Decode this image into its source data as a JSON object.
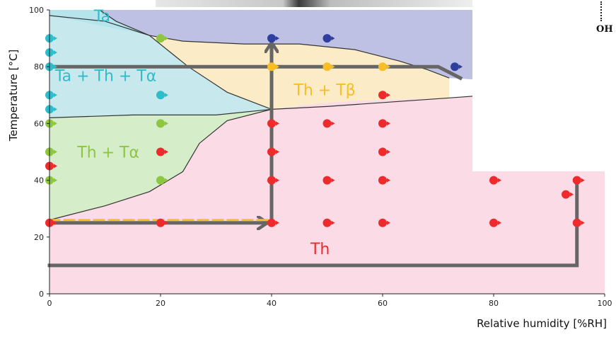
{
  "chart_data": {
    "type": "scatter",
    "title": "",
    "xlabel": "Relative humidity [%RH]",
    "ylabel": "Temperature [°C]",
    "xlim": [
      0,
      100
    ],
    "ylim": [
      0,
      100
    ],
    "x_ticks": [
      "0",
      "20",
      "40",
      "60",
      "80",
      "100"
    ],
    "y_ticks": [
      "0",
      "20",
      "40",
      "60",
      "80",
      "100"
    ],
    "grid": false,
    "colors": {
      "Ta": "#b5e4ec",
      "Ta+Th+Ta": "#c7e8ec",
      "Th+Ta": "#d5edc8",
      "Th+Tb": "#fcebc7",
      "Th": "#fadbe6",
      "top_right": "#bec1e3",
      "teal_point": "#2ebdcb",
      "green_point": "#8dc63f",
      "red_point": "#ee2a2d",
      "yellow_point": "#f9bd25",
      "blue_point": "#2e3f9e",
      "path_line": "#666666"
    },
    "regions": [
      {
        "label": "Ta",
        "color_key": "Ta",
        "label_x": 8,
        "label_y": 96,
        "label_color": "#2ebdcb",
        "polygon": [
          [
            0,
            100
          ],
          [
            9,
            100
          ],
          [
            12,
            96
          ],
          [
            18,
            91
          ],
          [
            0,
            98
          ]
        ]
      },
      {
        "label": "Ta + Th + Tα",
        "color_key": "Ta+Th+Ta",
        "label_x": 1,
        "label_y": 75,
        "label_color": "#2ebdcb",
        "polygon": [
          [
            0,
            98
          ],
          [
            18,
            91
          ],
          [
            25,
            80
          ],
          [
            32,
            71
          ],
          [
            40,
            65
          ],
          [
            30,
            63
          ],
          [
            15,
            63
          ],
          [
            0,
            62
          ]
        ]
      },
      {
        "label": "Th + Tα",
        "color_key": "Th+Ta",
        "label_x": 5,
        "label_y": 48,
        "label_color": "#8dc63f",
        "polygon": [
          [
            0,
            62
          ],
          [
            15,
            63
          ],
          [
            30,
            63
          ],
          [
            40,
            65
          ],
          [
            32,
            61
          ],
          [
            27,
            53
          ],
          [
            24,
            43
          ],
          [
            18,
            36
          ],
          [
            10,
            31
          ],
          [
            0,
            26
          ]
        ]
      },
      {
        "label": "Th + Tβ",
        "color_key": "Th+Tb",
        "label_x": 44,
        "label_y": 70,
        "label_color": "#f9bd25",
        "polygon": [
          [
            18,
            91
          ],
          [
            24,
            89
          ],
          [
            35,
            88
          ],
          [
            45,
            88
          ],
          [
            55,
            86
          ],
          [
            63,
            82
          ],
          [
            68,
            79
          ],
          [
            72,
            76
          ],
          [
            72,
            69
          ],
          [
            55,
            68
          ],
          [
            48,
            67
          ],
          [
            40,
            65
          ],
          [
            32,
            71
          ],
          [
            25,
            80
          ]
        ]
      },
      {
        "label": "Th",
        "color_key": "Th",
        "label_x": 47,
        "label_y": 14,
        "label_color": "#ee2a2d",
        "polygon": [
          [
            0,
            0
          ],
          [
            100,
            0
          ],
          [
            100,
            73
          ],
          [
            72,
            69
          ],
          [
            55,
            68
          ],
          [
            48,
            67
          ],
          [
            40,
            65
          ],
          [
            32,
            61
          ],
          [
            27,
            53
          ],
          [
            24,
            43
          ],
          [
            18,
            36
          ],
          [
            10,
            31
          ],
          [
            0,
            26
          ]
        ]
      },
      {
        "label": "",
        "color_key": "top_right",
        "label_x": 0,
        "label_y": 0,
        "label_color": "#000000",
        "polygon": [
          [
            9,
            100
          ],
          [
            100,
            100
          ],
          [
            100,
            73
          ],
          [
            72,
            76
          ],
          [
            68,
            79
          ],
          [
            63,
            82
          ],
          [
            55,
            86
          ],
          [
            45,
            88
          ],
          [
            35,
            88
          ],
          [
            24,
            89
          ],
          [
            18,
            91
          ],
          [
            12,
            96
          ]
        ]
      }
    ],
    "boundaries": [
      [
        [
          0,
          98
        ],
        [
          10,
          96
        ],
        [
          18,
          91
        ],
        [
          25,
          80
        ],
        [
          32,
          71
        ],
        [
          40,
          65
        ]
      ],
      [
        [
          18,
          91
        ],
        [
          24,
          89
        ],
        [
          35,
          88
        ],
        [
          45,
          88
        ],
        [
          55,
          86
        ],
        [
          63,
          82
        ],
        [
          68,
          79
        ],
        [
          72,
          76
        ]
      ],
      [
        [
          9,
          100
        ],
        [
          12,
          96
        ],
        [
          18,
          91
        ]
      ],
      [
        [
          0,
          62
        ],
        [
          15,
          63
        ],
        [
          30,
          63
        ],
        [
          40,
          65
        ],
        [
          50,
          66
        ],
        [
          72,
          69
        ],
        [
          100,
          73
        ]
      ],
      [
        [
          40,
          65
        ],
        [
          32,
          61
        ],
        [
          27,
          53
        ],
        [
          24,
          43
        ],
        [
          18,
          36
        ],
        [
          10,
          31
        ],
        [
          0,
          26
        ]
      ]
    ],
    "paths": [
      {
        "style": "solid",
        "points": [
          [
            0,
            25
          ],
          [
            39,
            25
          ]
        ],
        "arrow": true
      },
      {
        "style": "solid",
        "points": [
          [
            40,
            25
          ],
          [
            40,
            88
          ]
        ],
        "arrow": true
      },
      {
        "style": "solid",
        "points": [
          [
            0,
            80
          ],
          [
            70,
            80
          ],
          [
            74,
            76
          ]
        ],
        "arrow": false
      },
      {
        "style": "solid",
        "points": [
          [
            0,
            10
          ],
          [
            95,
            10
          ],
          [
            95,
            40
          ]
        ],
        "arrow": false
      },
      {
        "style": "dashed",
        "points": [
          [
            0,
            26
          ],
          [
            40,
            26
          ]
        ],
        "arrow": false
      }
    ],
    "points": [
      {
        "x": 0,
        "y": 90,
        "color": "teal_point"
      },
      {
        "x": 0,
        "y": 85,
        "color": "teal_point"
      },
      {
        "x": 0,
        "y": 80,
        "color": "teal_point"
      },
      {
        "x": 0,
        "y": 70,
        "color": "teal_point"
      },
      {
        "x": 0,
        "y": 65,
        "color": "teal_point"
      },
      {
        "x": 0,
        "y": 60,
        "color": "green_point"
      },
      {
        "x": 0,
        "y": 50,
        "color": "green_point"
      },
      {
        "x": 0,
        "y": 45,
        "color": "red_point"
      },
      {
        "x": 0,
        "y": 40,
        "color": "green_point"
      },
      {
        "x": 0,
        "y": 25,
        "color": "red_point"
      },
      {
        "x": 20,
        "y": 90,
        "color": "green_point"
      },
      {
        "x": 20,
        "y": 70,
        "color": "teal_point"
      },
      {
        "x": 20,
        "y": 60,
        "color": "green_point"
      },
      {
        "x": 20,
        "y": 50,
        "color": "red_point"
      },
      {
        "x": 20,
        "y": 40,
        "color": "green_point"
      },
      {
        "x": 20,
        "y": 25,
        "color": "red_point"
      },
      {
        "x": 40,
        "y": 90,
        "color": "blue_point"
      },
      {
        "x": 40,
        "y": 80,
        "color": "yellow_point"
      },
      {
        "x": 40,
        "y": 60,
        "color": "red_point"
      },
      {
        "x": 40,
        "y": 50,
        "color": "red_point"
      },
      {
        "x": 40,
        "y": 40,
        "color": "red_point"
      },
      {
        "x": 40,
        "y": 25,
        "color": "red_point"
      },
      {
        "x": 50,
        "y": 90,
        "color": "blue_point"
      },
      {
        "x": 50,
        "y": 80,
        "color": "yellow_point"
      },
      {
        "x": 50,
        "y": 60,
        "color": "red_point"
      },
      {
        "x": 50,
        "y": 40,
        "color": "red_point"
      },
      {
        "x": 50,
        "y": 25,
        "color": "red_point"
      },
      {
        "x": 60,
        "y": 80,
        "color": "yellow_point"
      },
      {
        "x": 60,
        "y": 70,
        "color": "red_point"
      },
      {
        "x": 60,
        "y": 60,
        "color": "red_point"
      },
      {
        "x": 60,
        "y": 50,
        "color": "red_point"
      },
      {
        "x": 60,
        "y": 40,
        "color": "red_point"
      },
      {
        "x": 60,
        "y": 25,
        "color": "red_point"
      },
      {
        "x": 73,
        "y": 80,
        "color": "blue_point"
      },
      {
        "x": 80,
        "y": 40,
        "color": "red_point"
      },
      {
        "x": 80,
        "y": 25,
        "color": "red_point"
      },
      {
        "x": 93,
        "y": 35,
        "color": "red_point"
      },
      {
        "x": 95,
        "y": 40,
        "color": "red_point"
      },
      {
        "x": 95,
        "y": 25,
        "color": "red_point"
      }
    ]
  },
  "overlay": {
    "corner_text": "OH"
  }
}
